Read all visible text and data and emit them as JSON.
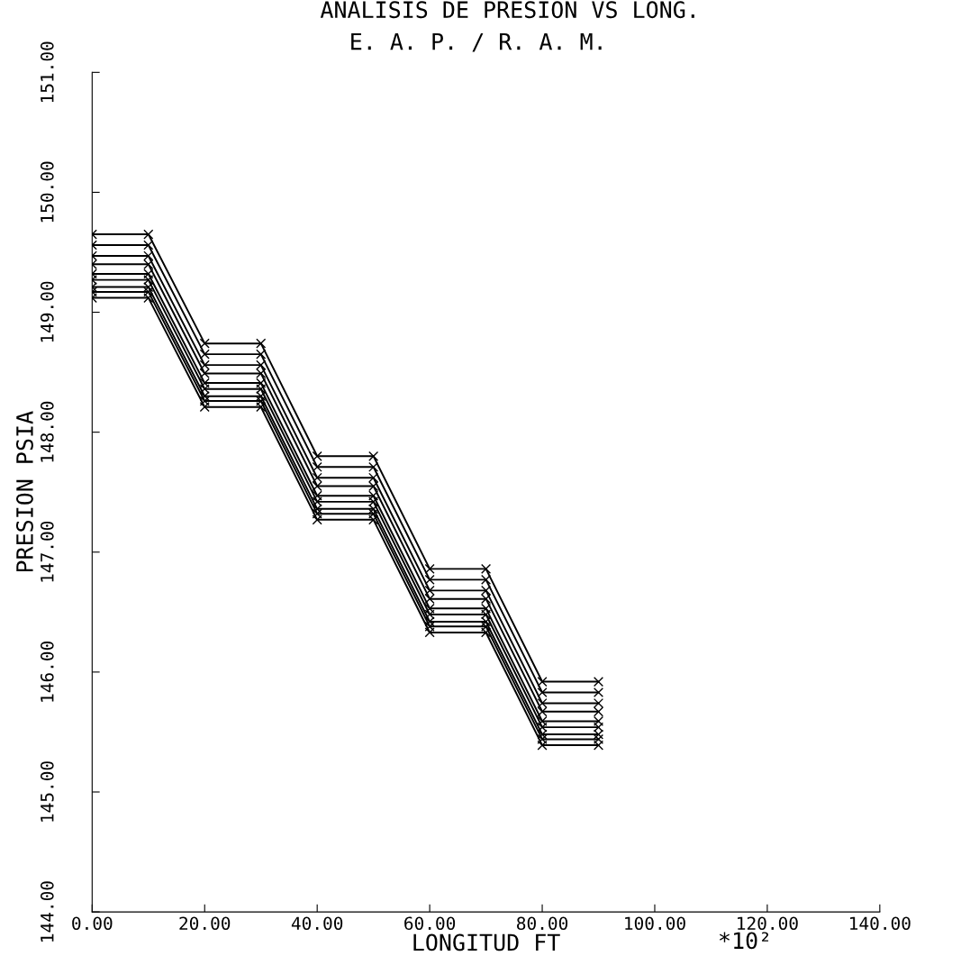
{
  "chart_data": {
    "type": "line",
    "title": "ANALISIS DE PRESION VS LONG.",
    "subtitle": "E. A. P. / R. A. M.",
    "xlabel": "LONGITUD FT",
    "ylabel": "PRESION PSIA",
    "annotations": [
      "*10²"
    ],
    "x": [
      0,
      10,
      20,
      30,
      40,
      50,
      60,
      70,
      80,
      90
    ],
    "series": [
      {
        "color": "#000000",
        "values": [
          149.65,
          149.65,
          148.74,
          148.74,
          147.8,
          147.8,
          146.86,
          146.86,
          145.92,
          145.92
        ]
      },
      {
        "color": "#000000",
        "values": [
          149.56,
          149.56,
          148.65,
          148.65,
          147.71,
          147.71,
          146.77,
          146.77,
          145.83,
          145.83
        ]
      },
      {
        "color": "#000000",
        "values": [
          149.47,
          149.47,
          148.56,
          148.56,
          147.62,
          147.62,
          146.68,
          146.68,
          145.74,
          145.74
        ]
      },
      {
        "color": "#000000",
        "values": [
          149.4,
          149.4,
          148.49,
          148.49,
          147.55,
          147.55,
          146.61,
          146.61,
          145.67,
          145.67
        ]
      },
      {
        "color": "#000000",
        "values": [
          149.32,
          149.32,
          148.41,
          148.41,
          147.47,
          147.47,
          146.53,
          146.53,
          145.59,
          145.59
        ]
      },
      {
        "color": "#000000",
        "values": [
          149.27,
          149.27,
          148.36,
          148.36,
          147.42,
          147.42,
          146.48,
          146.48,
          145.54,
          145.54
        ]
      },
      {
        "color": "#000000",
        "values": [
          149.21,
          149.21,
          148.3,
          148.3,
          147.36,
          147.36,
          146.42,
          146.42,
          145.48,
          145.48
        ]
      },
      {
        "color": "#000000",
        "values": [
          149.17,
          149.17,
          148.26,
          148.26,
          147.32,
          147.32,
          146.38,
          146.38,
          145.44,
          145.44
        ]
      },
      {
        "color": "#000000",
        "values": [
          149.12,
          149.12,
          148.21,
          148.21,
          147.27,
          147.27,
          146.33,
          146.33,
          145.39,
          145.39
        ]
      }
    ],
    "xlim": [
      0,
      140
    ],
    "xticks": [
      {
        "value": 0,
        "label": "0.00"
      },
      {
        "value": 20,
        "label": "20.00"
      },
      {
        "value": 40,
        "label": "40.00"
      },
      {
        "value": 60,
        "label": "60.00"
      },
      {
        "value": 80,
        "label": "80.00"
      },
      {
        "value": 100,
        "label": "100.00"
      },
      {
        "value": 120,
        "label": "120.00"
      },
      {
        "value": 140,
        "label": "140.00"
      }
    ],
    "ylim": [
      144,
      151
    ],
    "yticks": [
      {
        "value": 144,
        "label": "144.00"
      },
      {
        "value": 145,
        "label": "145.00"
      },
      {
        "value": 146,
        "label": "146.00"
      },
      {
        "value": 147,
        "label": "147.00"
      },
      {
        "value": 148,
        "label": "148.00"
      },
      {
        "value": 149,
        "label": "149.00"
      },
      {
        "value": 150,
        "label": "150.00"
      },
      {
        "value": 151,
        "label": "151.00"
      }
    ],
    "grid": false,
    "marker": "cross",
    "line_style": "solid"
  }
}
